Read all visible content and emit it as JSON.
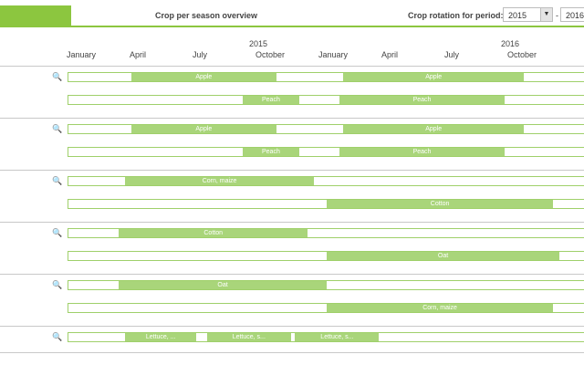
{
  "header": {
    "title": "Crop per season overview",
    "period_label": "Crop rotation for period:",
    "period_from": "2015",
    "period_separator": "-",
    "period_to": "2016"
  },
  "timeline": {
    "years": [
      {
        "label": "2015",
        "month": 12
      },
      {
        "label": "2016",
        "month": 24
      }
    ],
    "months": [
      {
        "label": "January",
        "m": 0
      },
      {
        "label": "April",
        "m": 3
      },
      {
        "label": "July",
        "m": 6
      },
      {
        "label": "October",
        "m": 9
      },
      {
        "label": "January",
        "m": 12
      },
      {
        "label": "April",
        "m": 15
      },
      {
        "label": "July",
        "m": 18
      },
      {
        "label": "October",
        "m": 21
      }
    ]
  },
  "fields": [
    {
      "rows": [
        {
          "bars": [
            {
              "label": "Apple",
              "start": 3.0,
              "end": 9.9
            },
            {
              "label": "Apple",
              "start": 13.1,
              "end": 21.7
            }
          ]
        },
        {
          "bars": [
            {
              "label": "Peach",
              "start": 8.3,
              "end": 11.0
            },
            {
              "label": "Peach",
              "start": 12.9,
              "end": 20.8
            }
          ]
        }
      ]
    },
    {
      "rows": [
        {
          "bars": [
            {
              "label": "Apple",
              "start": 3.0,
              "end": 9.9
            },
            {
              "label": "Apple",
              "start": 13.1,
              "end": 21.7
            }
          ]
        },
        {
          "bars": [
            {
              "label": "Peach",
              "start": 8.3,
              "end": 11.0
            },
            {
              "label": "Peach",
              "start": 12.9,
              "end": 20.8
            }
          ]
        }
      ]
    },
    {
      "rows": [
        {
          "bars": [
            {
              "label": "Corn, maize",
              "start": 2.7,
              "end": 11.7
            }
          ]
        },
        {
          "bars": [
            {
              "label": "Cotton",
              "start": 12.3,
              "end": 23.1
            }
          ]
        }
      ]
    },
    {
      "rows": [
        {
          "bars": [
            {
              "label": "Cotton",
              "start": 2.4,
              "end": 11.4
            }
          ]
        },
        {
          "bars": [
            {
              "label": "Oat",
              "start": 12.3,
              "end": 23.4
            }
          ]
        }
      ]
    },
    {
      "rows": [
        {
          "bars": [
            {
              "label": "Oat",
              "start": 2.4,
              "end": 12.3
            }
          ]
        },
        {
          "bars": [
            {
              "label": "Corn, maize",
              "start": 12.3,
              "end": 23.1
            }
          ]
        }
      ]
    },
    {
      "rows": [
        {
          "bars": [
            {
              "label": "Lettuce, ...",
              "start": 2.7,
              "end": 6.1
            },
            {
              "label": "Lettuce, s...",
              "start": 6.6,
              "end": 10.6
            },
            {
              "label": "Lettuce, s...",
              "start": 10.8,
              "end": 14.8
            }
          ]
        }
      ]
    }
  ]
}
